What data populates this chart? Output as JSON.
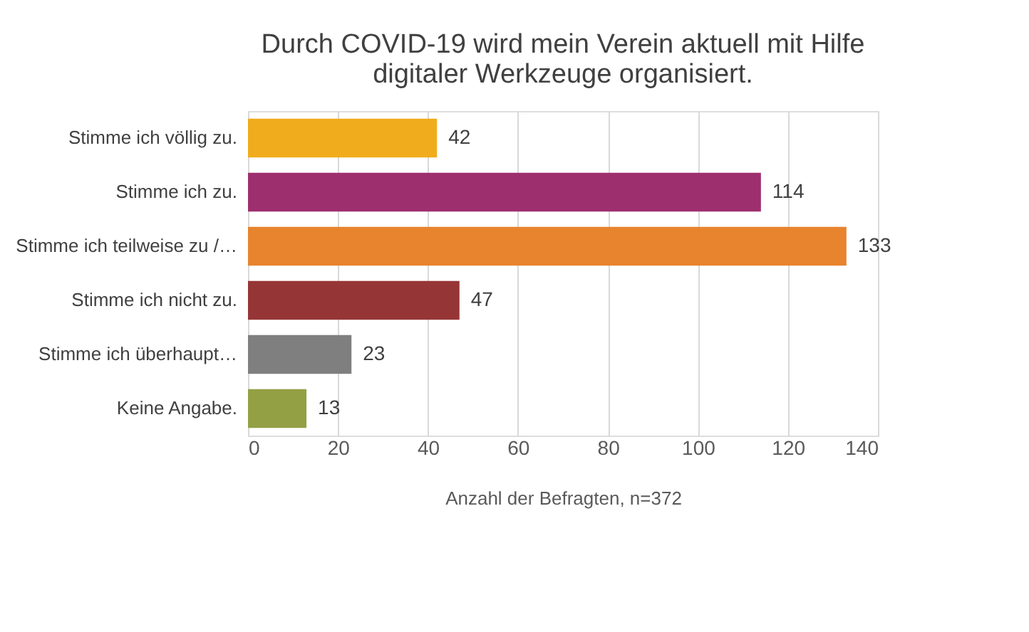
{
  "chart_data": {
    "type": "bar",
    "orientation": "horizontal",
    "title": "Durch COVID-19 wird mein Verein aktuell mit Hilfe digitaler Werkzeuge organisiert.",
    "xlabel": "Anzahl der Befragten, n=372",
    "categories": [
      "Stimme ich völlig zu.",
      "Stimme ich zu.",
      "Stimme ich teilweise zu /…",
      "Stimme ich nicht zu.",
      "Stimme ich überhaupt…",
      "Keine Angabe."
    ],
    "values": [
      42,
      114,
      133,
      47,
      23,
      13
    ],
    "colors": [
      "#f0ac1c",
      "#9e2f6e",
      "#e8832e",
      "#963535",
      "#7f7f7f",
      "#93a044"
    ],
    "xlim": [
      0,
      140
    ],
    "xticks": [
      0,
      20,
      40,
      60,
      80,
      100,
      120,
      140
    ],
    "grid": "x",
    "data_labels": true
  }
}
